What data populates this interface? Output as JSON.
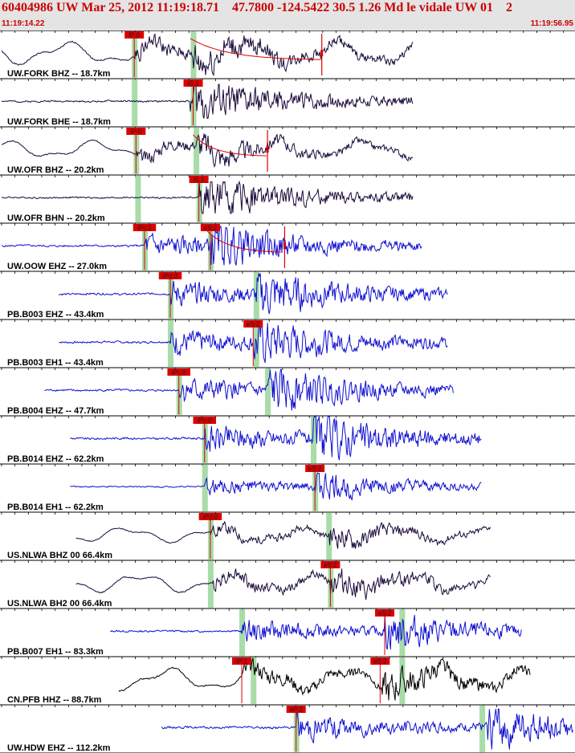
{
  "header": {
    "title": "60404986 UW Mar 25, 2012 11:19:18.71    47.7800 -124.5422 30.5 1.26 Md le vidale UW 01    2",
    "time_start": "11:19:14.22",
    "time_end": "11:19:56.95"
  },
  "chart_data": {
    "type": "seismogram",
    "x_range": [
      "11:19:14.22",
      "11:19:56.95"
    ],
    "colors": {
      "short_period": "#1a0a3a",
      "broadband": "#1010d0",
      "long_period": "#000000",
      "pick": "#dd0000",
      "theoretical": "#a8dca8"
    },
    "traces": [
      {
        "name": "UW.FORK BHZ -- 18.7km",
        "color": "#1a0a3a",
        "kind": "lp",
        "start": 0,
        "end": 0.72,
        "onset": 0.232,
        "s_onset": 0.335,
        "amp": 0.9,
        "seed": 1,
        "picks": [
          {
            "label": "iP:0",
            "t": 0.232,
            "tick": true
          }
        ],
        "green": [
          0.232,
          0.335
        ],
        "coda": [
          0.33,
          0.56
        ]
      },
      {
        "name": "UW.FORK BHE -- 18.7km",
        "color": "#1a0a3a",
        "kind": "sp",
        "start": 0,
        "end": 0.72,
        "onset": 0.33,
        "s_onset": 0.335,
        "amp": 0.7,
        "seed": 2,
        "picks": [
          {
            "label": "iS:1",
            "t": 0.335,
            "tick": true
          }
        ],
        "green": [
          0.232,
          0.335
        ]
      },
      {
        "name": "UW.OFR BHZ -- 20.2km",
        "color": "#1a0a3a",
        "kind": "lp",
        "start": 0,
        "end": 0.72,
        "onset": 0.235,
        "s_onset": 0.34,
        "amp": 0.7,
        "seed": 3,
        "picks": [
          {
            "label": "iP:0",
            "t": 0.235,
            "tick": true
          }
        ],
        "green": [
          0.235,
          0.34
        ],
        "coda": [
          0.335,
          0.465
        ]
      },
      {
        "name": "UW.OFR BHN -- 20.2km",
        "color": "#1a0a3a",
        "kind": "sp",
        "start": 0,
        "end": 0.72,
        "onset": 0.345,
        "s_onset": 0.345,
        "amp": 0.65,
        "seed": 4,
        "picks": [
          {
            "label": "iS:1",
            "t": 0.345,
            "tick": true
          }
        ],
        "green": [
          0.238,
          0.345
        ]
      },
      {
        "name": "UW.OOW EHZ -- 27.0km",
        "color": "#1010d0",
        "kind": "sp",
        "start": 0,
        "end": 0.735,
        "onset": 0.25,
        "s_onset": 0.365,
        "amp": 0.8,
        "seed": 5,
        "picks": [
          {
            "label": "iPc:1",
            "t": 0.25,
            "tick": true
          },
          {
            "label": "eS:2",
            "t": 0.365,
            "tick": true
          }
        ],
        "green": [
          0.25,
          0.365
        ],
        "coda": [
          0.36,
          0.495
        ]
      },
      {
        "name": "PB.B003 EHZ -- 43.4km",
        "color": "#1010d0",
        "kind": "sp",
        "start": 0.1,
        "end": 0.78,
        "onset": 0.295,
        "s_onset": 0.445,
        "amp": 0.85,
        "seed": 6,
        "picks": [
          {
            "label": "iPd:0",
            "t": 0.295,
            "tick": true
          }
        ],
        "green": [
          0.295,
          0.445
        ]
      },
      {
        "name": "PB.B003 EH1 -- 43.4km",
        "color": "#1010d0",
        "kind": "sp",
        "start": 0.1,
        "end": 0.78,
        "onset": 0.295,
        "s_onset": 0.44,
        "amp": 0.85,
        "seed": 7,
        "picks": [
          {
            "label": "eS:2",
            "t": 0.44,
            "tick": true
          }
        ],
        "green": [
          0.295,
          0.445
        ]
      },
      {
        "name": "PB.B004 EHZ -- 47.7km",
        "color": "#1010d0",
        "kind": "sp",
        "start": 0.075,
        "end": 0.79,
        "onset": 0.31,
        "s_onset": 0.465,
        "amp": 0.85,
        "seed": 8,
        "picks": [
          {
            "label": "iPc:0",
            "t": 0.31,
            "tick": true
          }
        ],
        "green": [
          0.31,
          0.465
        ]
      },
      {
        "name": "PB.B014 EHZ -- 62.2km",
        "color": "#1010d0",
        "kind": "sp",
        "start": 0.12,
        "end": 0.84,
        "onset": 0.355,
        "s_onset": 0.545,
        "amp": 0.9,
        "seed": 9,
        "picks": [
          {
            "label": "iPc:0",
            "t": 0.355,
            "tick": true
          }
        ],
        "green": [
          0.355,
          0.545
        ]
      },
      {
        "name": "PB.B014 EH1 -- 62.2km",
        "color": "#1010d0",
        "kind": "sp",
        "start": 0.12,
        "end": 0.84,
        "onset": 0.355,
        "s_onset": 0.548,
        "amp": 0.55,
        "seed": 10,
        "picks": [
          {
            "label": "eS:2",
            "t": 0.548,
            "tick": true
          }
        ],
        "green": [
          0.355,
          0.548
        ]
      },
      {
        "name": "US.NLWA BHZ 00 66.4km",
        "color": "#1a0a3a",
        "kind": "lp",
        "start": 0.13,
        "end": 0.855,
        "onset": 0.365,
        "s_onset": 0.572,
        "amp": 0.6,
        "seed": 11,
        "picks": [
          {
            "label": "iPd:0",
            "t": 0.365,
            "tick": true
          }
        ],
        "green": [
          0.365,
          0.572
        ]
      },
      {
        "name": "US.NLWA BH2 00 66.4km",
        "color": "#1a0a3a",
        "kind": "lp",
        "start": 0.13,
        "end": 0.855,
        "onset": 0.37,
        "s_onset": 0.575,
        "amp": 0.75,
        "seed": 12,
        "picks": [
          {
            "label": "eS:2",
            "t": 0.575,
            "tick": true
          }
        ],
        "green": [
          0.365,
          0.575
        ]
      },
      {
        "name": "PB.B007 EH1 -- 83.3km",
        "color": "#1010d0",
        "kind": "sp",
        "start": 0.19,
        "end": 0.91,
        "onset": 0.42,
        "s_onset": 0.67,
        "amp": 0.75,
        "seed": 13,
        "picks": [
          {
            "label": "eS:2",
            "t": 0.67,
            "tick": true
          }
        ],
        "green": [
          0.42,
          0.7
        ]
      },
      {
        "name": "CN.PFB HHZ -- 88.7km",
        "color": "#000000",
        "kind": "lp",
        "start": 0.205,
        "end": 0.925,
        "onset": 0.42,
        "s_onset": 0.665,
        "amp": 0.9,
        "seed": 14,
        "picks": [
          {
            "label": "iP:1",
            "t": 0.42,
            "tick": true
          },
          {
            "label": "eS:2",
            "t": 0.662,
            "tick": true
          }
        ],
        "green": [
          0.44,
          0.7
        ]
      },
      {
        "name": "UW.HDW EHZ -- 112.2km",
        "color": "#1010d0",
        "kind": "sp",
        "start": 0.28,
        "end": 1.0,
        "onset": 0.515,
        "s_onset": 0.85,
        "amp": 0.9,
        "seed": 15,
        "picks": [
          {
            "label": "eP:2",
            "t": 0.515,
            "tick": true
          }
        ],
        "green": [
          0.515,
          0.84
        ]
      }
    ]
  }
}
